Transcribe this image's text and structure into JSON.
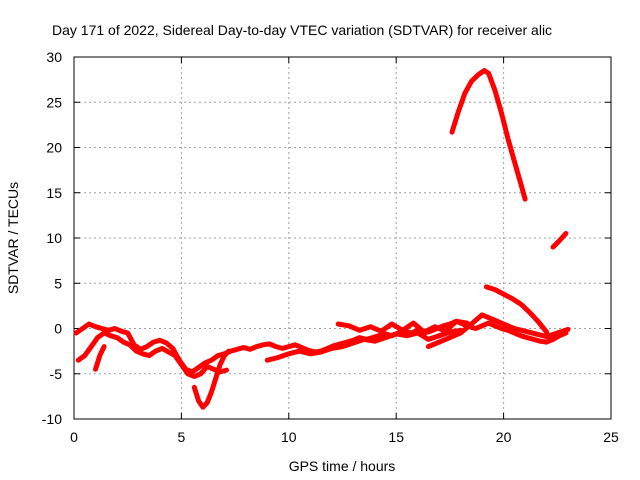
{
  "chart_data": {
    "type": "line",
    "title": "Day 171 of 2022, Sidereal Day-to-day VTEC variation (SDTVAR) for receiver alic",
    "xlabel": "GPS time / hours",
    "ylabel": "SDTVAR / TECUs",
    "xlim": [
      0,
      25
    ],
    "ylim": [
      -10,
      30
    ],
    "xticks": [
      "0",
      "5",
      "10",
      "15",
      "20",
      "25"
    ],
    "yticks": [
      "-10",
      "-5",
      "0",
      "5",
      "10",
      "15",
      "20",
      "25",
      "30"
    ],
    "grid": true,
    "legend": "none",
    "color": "#ff0000",
    "series": [
      {
        "x": [
          0.1,
          0.4,
          0.7,
          1.0,
          1.3,
          1.6,
          1.9,
          2.2,
          2.5,
          2.8,
          3.1,
          3.4,
          3.7,
          4.0,
          4.3,
          4.6,
          4.9,
          5.2,
          5.5,
          5.8,
          6.1,
          6.4,
          6.7,
          7.0,
          7.3,
          7.6,
          7.9,
          8.2,
          8.5,
          8.8,
          9.1,
          9.4,
          9.7,
          10.0,
          10.3,
          10.6,
          10.9,
          11.2,
          11.5,
          11.8,
          12.1,
          12.4,
          12.7,
          13.0,
          13.3,
          13.6,
          13.9,
          14.2,
          14.5,
          14.8,
          15.1,
          15.4,
          15.7,
          16.0,
          16.3,
          16.6,
          16.9,
          17.2,
          17.5,
          17.8,
          18.1,
          18.4,
          18.7,
          19.0,
          19.3,
          19.6,
          19.9,
          20.2,
          20.5,
          20.8,
          21.1,
          21.4,
          21.7,
          22.0,
          22.3,
          22.6,
          22.9
        ],
        "y": [
          -0.5,
          0.0,
          0.5,
          0.2,
          0.0,
          -0.2,
          0.0,
          -0.3,
          -0.5,
          -1.8,
          -2.3,
          -2.0,
          -1.5,
          -1.3,
          -1.6,
          -2.2,
          -3.5,
          -4.5,
          -4.8,
          -4.3,
          -3.8,
          -3.5,
          -3.0,
          -2.8,
          -2.5,
          -2.3,
          -2.1,
          -2.3,
          -2.0,
          -1.8,
          -1.7,
          -2.0,
          -2.2,
          -2.0,
          -1.8,
          -2.1,
          -2.4,
          -2.6,
          -2.5,
          -2.2,
          -1.9,
          -1.7,
          -1.5,
          -1.3,
          -1.0,
          -1.2,
          -1.0,
          -0.8,
          -0.6,
          -0.8,
          -0.5,
          -0.3,
          -0.5,
          -0.2,
          -0.5,
          -0.3,
          0.0,
          0.3,
          0.5,
          0.8,
          0.5,
          0.2,
          0.0,
          0.3,
          0.6,
          0.3,
          0.0,
          -0.2,
          -0.5,
          -0.8,
          -1.0,
          -1.2,
          -1.4,
          -1.5,
          -1.2,
          -0.8,
          -0.5
        ]
      },
      {
        "x": [
          0.2,
          0.5,
          0.8,
          1.1,
          1.4,
          1.7,
          2.0,
          2.3,
          2.6,
          2.9,
          3.2,
          3.5,
          3.8,
          4.1,
          4.4,
          4.7,
          5.0,
          5.3,
          5.6,
          5.9,
          6.2,
          6.5,
          6.8,
          7.1
        ],
        "y": [
          -3.5,
          -3.0,
          -2.0,
          -1.0,
          -0.5,
          -0.8,
          -1.0,
          -1.5,
          -1.8,
          -2.5,
          -2.8,
          -3.0,
          -2.5,
          -2.2,
          -2.6,
          -3.0,
          -4.0,
          -5.0,
          -5.3,
          -5.0,
          -4.2,
          -4.5,
          -4.8,
          -4.6
        ]
      },
      {
        "x": [
          5.6,
          5.8,
          6.0,
          6.2,
          6.4,
          6.6,
          6.8,
          7.0,
          7.2
        ],
        "y": [
          -6.5,
          -8.0,
          -8.7,
          -8.2,
          -7.0,
          -5.5,
          -4.0,
          -3.0,
          -2.5
        ]
      },
      {
        "x": [
          1.0,
          1.2,
          1.4
        ],
        "y": [
          -4.5,
          -3.0,
          -2.0
        ]
      },
      {
        "x": [
          9.0,
          9.5,
          10.0,
          10.5,
          11.0,
          11.5,
          12.0,
          12.5,
          13.0,
          13.5,
          14.0,
          14.5,
          15.0,
          15.5,
          16.0,
          16.5,
          17.0,
          17.5,
          18.0
        ],
        "y": [
          -3.5,
          -3.2,
          -2.8,
          -2.5,
          -2.8,
          -2.6,
          -2.2,
          -2.0,
          -1.6,
          -1.2,
          -1.4,
          -1.0,
          -0.6,
          -0.8,
          -0.5,
          -1.2,
          -0.8,
          -0.4,
          -0.2
        ]
      },
      {
        "x": [
          12.3,
          12.8,
          13.3,
          13.8,
          14.3,
          14.8,
          15.3,
          15.8,
          16.3,
          16.8,
          17.3,
          17.8,
          18.3
        ],
        "y": [
          0.5,
          0.3,
          -0.2,
          0.2,
          -0.3,
          0.5,
          -0.2,
          0.6,
          -0.4,
          0.2,
          -0.3,
          0.8,
          0.6
        ]
      },
      {
        "x": [
          16.5,
          17.0,
          17.5,
          18.0,
          18.5,
          19.0,
          19.5,
          20.0,
          20.5,
          21.0,
          21.5,
          22.0,
          22.5,
          23.0
        ],
        "y": [
          -2.0,
          -1.5,
          -1.0,
          -0.5,
          0.5,
          1.5,
          1.0,
          0.5,
          0.0,
          -0.3,
          -0.6,
          -0.9,
          -0.5,
          -0.1
        ]
      },
      {
        "x": [
          17.6,
          17.9,
          18.2,
          18.5,
          18.8,
          19.1,
          19.3,
          19.6,
          19.9,
          20.2,
          20.5,
          20.8,
          21.0
        ],
        "y": [
          21.7,
          24.0,
          26.0,
          27.3,
          28.0,
          28.5,
          28.2,
          26.3,
          23.8,
          21.0,
          18.5,
          16.0,
          14.3
        ]
      },
      {
        "x": [
          22.3,
          22.6,
          22.9
        ],
        "y": [
          9.0,
          9.7,
          10.5
        ]
      },
      {
        "x": [
          19.2,
          19.6,
          20.0,
          20.4,
          20.8,
          21.2,
          21.6,
          22.0
        ],
        "y": [
          4.6,
          4.3,
          3.8,
          3.3,
          2.7,
          1.8,
          0.8,
          -0.4
        ]
      }
    ]
  }
}
